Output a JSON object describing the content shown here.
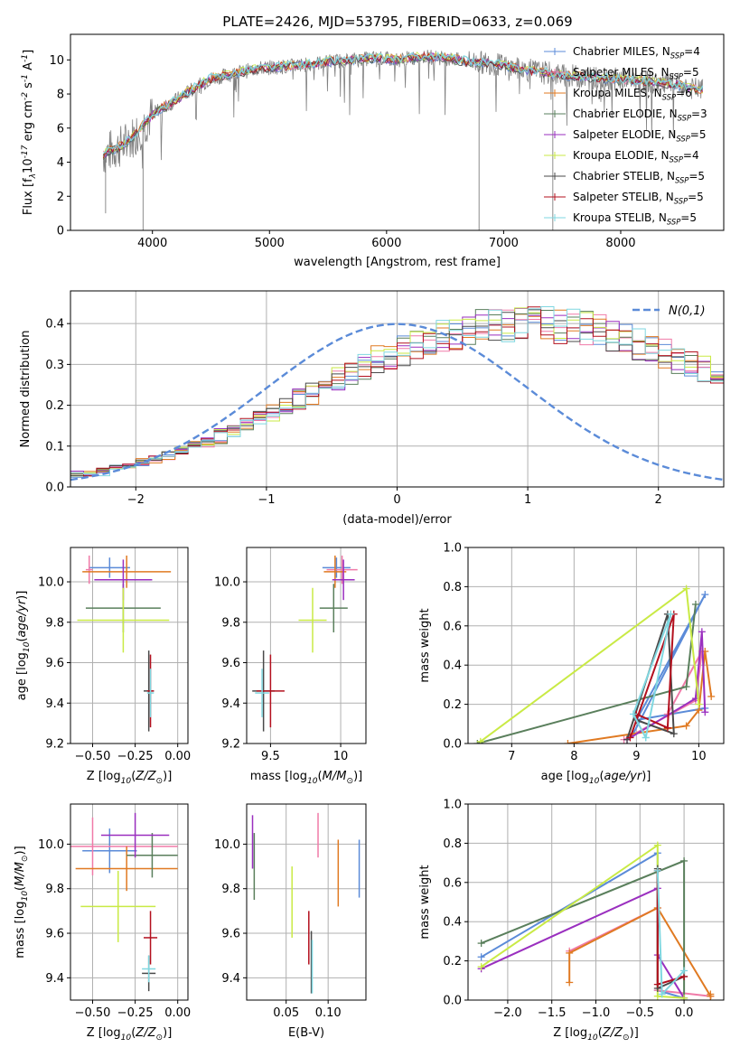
{
  "figure_title": "PLATE=2426, MJD=53795, FIBERID=0633, z=0.069",
  "colors": {
    "Chabrier MILES": "#5b8bd8",
    "Salpeter MILES": "#f07aa8",
    "Kroupa MILES": "#e07a22",
    "Chabrier ELODIE": "#5a7f5c",
    "Salpeter ELODIE": "#9a2fbf",
    "Kroupa ELODIE": "#c9ea45",
    "Chabrier STELIB": "#4a4a4a",
    "Salpeter STELIB": "#b3101e",
    "Kroupa STELIB": "#7fd7e0",
    "data": "#808080",
    "grid": "#b0b0b0",
    "normal_curve": "#5b8bd8"
  },
  "chart_data": [
    {
      "type": "line",
      "xlabel": "wavelength [Angstrom, rest frame]",
      "ylabel": "Flux [f$_\\lambda$10$^{-17}$ erg cm$^{-2}$ s$^{-1}$ A$^{-1}$]",
      "xlim": [
        3300,
        8880
      ],
      "ylim": [
        0,
        11.5
      ],
      "xticks": [
        4000,
        5000,
        6000,
        7000,
        8000
      ],
      "yticks": [
        0,
        2,
        4,
        6,
        8,
        10
      ],
      "grid": false,
      "legend_position": "right",
      "continuum": {
        "x": [
          3570,
          3650,
          3750,
          3850,
          3950,
          4050,
          4150,
          4300,
          4500,
          4700,
          4900,
          5100,
          5300,
          5500,
          5700,
          5900,
          6100,
          6300,
          6500,
          6700,
          6900,
          7100,
          7300,
          7500,
          7700,
          7900,
          8100,
          8300,
          8500,
          8700
        ],
        "y": [
          4.4,
          4.7,
          5.0,
          5.6,
          6.4,
          7.1,
          7.4,
          8.1,
          8.9,
          9.2,
          9.5,
          9.6,
          9.7,
          9.9,
          10.0,
          10.1,
          10.0,
          10.2,
          10.1,
          9.9,
          9.8,
          9.5,
          9.3,
          9.1,
          9.0,
          8.9,
          8.8,
          8.7,
          8.5,
          8.2
        ]
      },
      "series": [
        {
          "name": "Chabrier MILES",
          "label": "Chabrier MILES, N$_{SSP}$=4"
        },
        {
          "name": "Salpeter MILES",
          "label": "Salpeter MILES, N$_{SSP}$=5"
        },
        {
          "name": "Kroupa MILES",
          "label": "Kroupa MILES, N$_{SSP}$=6"
        },
        {
          "name": "Chabrier ELODIE",
          "label": "Chabrier ELODIE, N$_{SSP}$=3"
        },
        {
          "name": "Salpeter ELODIE",
          "label": "Salpeter ELODIE, N$_{SSP}$=5"
        },
        {
          "name": "Kroupa ELODIE",
          "label": "Kroupa ELODIE, N$_{SSP}$=4"
        },
        {
          "name": "Chabrier STELIB",
          "label": "Chabrier STELIB, N$_{SSP}$=5"
        },
        {
          "name": "Salpeter STELIB",
          "label": "Salpeter STELIB, N$_{SSP}$=5"
        },
        {
          "name": "Kroupa STELIB",
          "label": "Kroupa STELIB, N$_{SSP}$=5"
        }
      ]
    },
    {
      "type": "line",
      "xlabel": "(data-model)/error",
      "ylabel": "Normed distribution",
      "xlim": [
        -2.5,
        2.5
      ],
      "ylim": [
        0,
        0.48
      ],
      "xticks": [
        -2,
        -1,
        0,
        1,
        2
      ],
      "yticks": [
        0.0,
        0.1,
        0.2,
        0.3,
        0.4
      ],
      "grid": true,
      "legend_position": "top-right",
      "legend_label": "$\\mathcal{N}(0,1)$",
      "bin_width": 0.1,
      "x_start": -2.5,
      "histogram_template": [
        0.03,
        0.032,
        0.036,
        0.045,
        0.053,
        0.06,
        0.068,
        0.078,
        0.088,
        0.099,
        0.111,
        0.124,
        0.138,
        0.152,
        0.167,
        0.182,
        0.198,
        0.214,
        0.231,
        0.247,
        0.263,
        0.279,
        0.294,
        0.309,
        0.323,
        0.336,
        0.348,
        0.358,
        0.368,
        0.377,
        0.384,
        0.39,
        0.394,
        0.397,
        0.399,
        0.399,
        0.398,
        0.396,
        0.392,
        0.386,
        0.379,
        0.371,
        0.362,
        0.351,
        0.339,
        0.326,
        0.313,
        0.299,
        0.284,
        0.269,
        0.253,
        0.237,
        0.221,
        0.205,
        0.189,
        0.173,
        0.158,
        0.143,
        0.129,
        0.116,
        0.103,
        0.092,
        0.082,
        0.072,
        0.064,
        0.057,
        0.05,
        0.044,
        0.039,
        0.034,
        0.03,
        0.028,
        0.026,
        0.024,
        0.024,
        0.024,
        0.024,
        0.024,
        0.024,
        0.024
      ]
    },
    {
      "type": "scatter",
      "xlabel": "Z [log$_{10}$($Z/Z_\\odot$)]",
      "ylabel": "age  [log$_{10}$($age/yr$)]",
      "xlim": [
        -0.63,
        0.06
      ],
      "ylim": [
        9.2,
        10.17
      ],
      "xticks": [
        -0.5,
        -0.25,
        0.0
      ],
      "xticklabels": [
        "−0.50",
        "−0.25",
        "0.00"
      ],
      "xticks_minor": [
        -0.5,
        -0.45,
        -0.4,
        -0.35,
        -0.3,
        -0.25,
        -0.2,
        -0.15,
        -0.1,
        -0.05,
        0.0
      ],
      "xticks_minor_labels": [
        "−0.50",
        "−0.45",
        "−0.40",
        "−0.35",
        "−0.30",
        "−0.25",
        "−0.20",
        "−0.15",
        "−0.10",
        "−0.05",
        "0.00"
      ],
      "yticks": [
        9.2,
        9.4,
        9.6,
        9.8,
        10.0
      ],
      "grid": true,
      "points": [
        {
          "series": "Chabrier MILES",
          "x": -0.4,
          "y": 10.07,
          "xerr": 0.12,
          "yerr": 0.05
        },
        {
          "series": "Salpeter MILES",
          "x": -0.52,
          "y": 10.06,
          "xerr": 0.02,
          "yerr": 0.07
        },
        {
          "series": "Kroupa MILES",
          "x": -0.3,
          "y": 10.05,
          "xerr": 0.26,
          "yerr": 0.08
        },
        {
          "series": "Chabrier ELODIE",
          "x": -0.32,
          "y": 9.87,
          "xerr": 0.22,
          "yerr": 0.12
        },
        {
          "series": "Salpeter ELODIE",
          "x": -0.32,
          "y": 10.01,
          "xerr": 0.17,
          "yerr": 0.1
        },
        {
          "series": "Kroupa ELODIE",
          "x": -0.32,
          "y": 9.81,
          "xerr": 0.27,
          "yerr": 0.16
        },
        {
          "series": "Chabrier STELIB",
          "x": -0.17,
          "y": 9.46,
          "xerr": 0.03,
          "yerr": 0.2
        },
        {
          "series": "Salpeter STELIB",
          "x": -0.16,
          "y": 9.46,
          "xerr": 0.02,
          "yerr": 0.18
        },
        {
          "series": "Kroupa STELIB",
          "x": -0.16,
          "y": 9.45,
          "xerr": 0.02,
          "yerr": 0.12
        }
      ]
    },
    {
      "type": "scatter",
      "xlabel": "mass [log$_{10}$($M/M_\\odot$)]",
      "ylabel": "",
      "xlim": [
        9.33,
        10.18
      ],
      "ylim": [
        9.2,
        10.17
      ],
      "xticks": [
        9.5,
        10.0
      ],
      "yticks": [
        9.2,
        9.4,
        9.6,
        9.8,
        10.0
      ],
      "grid": true,
      "points": [
        {
          "series": "Chabrier MILES",
          "x": 9.97,
          "y": 10.07,
          "xerr": 0.1,
          "yerr": 0.05
        },
        {
          "series": "Salpeter MILES",
          "x": 10.01,
          "y": 10.06,
          "xerr": 0.11,
          "yerr": 0.07
        },
        {
          "series": "Kroupa MILES",
          "x": 9.96,
          "y": 10.05,
          "xerr": 0.08,
          "yerr": 0.08
        },
        {
          "series": "Chabrier ELODIE",
          "x": 9.95,
          "y": 9.87,
          "xerr": 0.1,
          "yerr": 0.12
        },
        {
          "series": "Salpeter ELODIE",
          "x": 10.02,
          "y": 10.01,
          "xerr": 0.08,
          "yerr": 0.1
        },
        {
          "series": "Kroupa ELODIE",
          "x": 9.8,
          "y": 9.81,
          "xerr": 0.1,
          "yerr": 0.16
        },
        {
          "series": "Chabrier STELIB",
          "x": 9.45,
          "y": 9.46,
          "xerr": 0.08,
          "yerr": 0.2
        },
        {
          "series": "Salpeter STELIB",
          "x": 9.5,
          "y": 9.46,
          "xerr": 0.1,
          "yerr": 0.18
        },
        {
          "series": "Kroupa STELIB",
          "x": 9.44,
          "y": 9.45,
          "xerr": 0.05,
          "yerr": 0.12
        }
      ]
    },
    {
      "type": "line",
      "xlabel": "age  [log$_{10}$($age/yr$)]",
      "ylabel": "mass weight",
      "xlim": [
        6.3,
        10.4
      ],
      "ylim": [
        0,
        1.0
      ],
      "xticks": [
        7,
        8,
        9,
        10
      ],
      "yticks": [
        0.0,
        0.2,
        0.4,
        0.6,
        0.8,
        1.0
      ],
      "grid": true,
      "series": [
        {
          "name": "Chabrier MILES",
          "x": [
            8.95,
            10.1,
            9.0,
            10.1
          ],
          "y": [
            0.05,
            0.76,
            0.12,
            0.18
          ]
        },
        {
          "name": "Salpeter MILES",
          "x": [
            8.8,
            9.95,
            10.05,
            9.5
          ],
          "y": [
            0.02,
            0.22,
            0.47,
            0.15
          ]
        },
        {
          "name": "Kroupa MILES",
          "x": [
            7.9,
            9.8,
            10.0,
            10.1,
            10.2
          ],
          "y": [
            0.0,
            0.09,
            0.17,
            0.47,
            0.24
          ]
        },
        {
          "name": "Chabrier ELODIE",
          "x": [
            6.45,
            9.8,
            9.95
          ],
          "y": [
            0.0,
            0.29,
            0.71
          ]
        },
        {
          "name": "Salpeter ELODIE",
          "x": [
            8.85,
            9.95,
            10.05,
            10.1
          ],
          "y": [
            0.02,
            0.23,
            0.57,
            0.16
          ]
        },
        {
          "name": "Kroupa ELODIE",
          "x": [
            6.5,
            9.8,
            10.0
          ],
          "y": [
            0.01,
            0.79,
            0.2
          ]
        },
        {
          "name": "Chabrier STELIB",
          "x": [
            8.85,
            9.5,
            9.6,
            9.0
          ],
          "y": [
            0.02,
            0.66,
            0.05,
            0.12
          ]
        },
        {
          "name": "Salpeter STELIB",
          "x": [
            8.9,
            9.6,
            9.5,
            9.0
          ],
          "y": [
            0.03,
            0.66,
            0.08,
            0.15
          ]
        },
        {
          "name": "Kroupa STELIB",
          "x": [
            9.15,
            9.55,
            8.95,
            9.15
          ],
          "y": [
            0.03,
            0.66,
            0.15,
            0.03
          ]
        }
      ]
    },
    {
      "type": "scatter",
      "xlabel": "Z [log$_{10}$($Z/Z_\\odot$)]",
      "ylabel": "mass [log$_{10}$($M/M_\\odot$)]",
      "xlim": [
        -0.63,
        0.06
      ],
      "ylim": [
        9.3,
        10.18
      ],
      "xticks": [
        -0.5,
        -0.25,
        0.0
      ],
      "xticklabels": [
        "−0.50",
        "−0.25",
        "0.00"
      ],
      "yticks": [
        9.4,
        9.6,
        9.8,
        10.0
      ],
      "grid": true,
      "points": [
        {
          "series": "Chabrier MILES",
          "x": -0.4,
          "y": 9.97,
          "xerr": 0.16,
          "yerr": 0.1
        },
        {
          "series": "Salpeter MILES",
          "x": -0.5,
          "y": 9.99,
          "xerr": 0.5,
          "yerr": 0.13
        },
        {
          "series": "Kroupa MILES",
          "x": -0.3,
          "y": 9.89,
          "xerr": 0.3,
          "yerr": 0.1
        },
        {
          "series": "Chabrier ELODIE",
          "x": -0.15,
          "y": 9.95,
          "xerr": 0.15,
          "yerr": 0.1
        },
        {
          "series": "Salpeter ELODIE",
          "x": -0.25,
          "y": 10.04,
          "xerr": 0.2,
          "yerr": 0.1
        },
        {
          "series": "Kroupa ELODIE",
          "x": -0.35,
          "y": 9.72,
          "xerr": 0.22,
          "yerr": 0.16
        },
        {
          "series": "Chabrier STELIB",
          "x": -0.17,
          "y": 9.42,
          "xerr": 0.04,
          "yerr": 0.08
        },
        {
          "series": "Salpeter STELIB",
          "x": -0.16,
          "y": 9.58,
          "xerr": 0.04,
          "yerr": 0.12
        },
        {
          "series": "Kroupa STELIB",
          "x": -0.17,
          "y": 9.44,
          "xerr": 0.04,
          "yerr": 0.06
        }
      ]
    },
    {
      "type": "scatter",
      "xlabel": "E(B-V)",
      "ylabel": "",
      "xlim": [
        0.003,
        0.145
      ],
      "ylim": [
        9.3,
        10.18
      ],
      "xticks": [
        0.05,
        0.1
      ],
      "xticklabels": [
        "0.05",
        "0.10"
      ],
      "yticks": [
        9.4,
        9.6,
        9.8,
        10.0
      ],
      "grid": true,
      "points": [
        {
          "series": "Chabrier MILES",
          "x": 0.137,
          "y": 9.89,
          "yerr": 0.13
        },
        {
          "series": "Salpeter MILES",
          "x": 0.088,
          "y": 10.04,
          "yerr": 0.1
        },
        {
          "series": "Kroupa MILES",
          "x": 0.112,
          "y": 9.87,
          "yerr": 0.15
        },
        {
          "series": "Chabrier ELODIE",
          "x": 0.012,
          "y": 9.9,
          "yerr": 0.15
        },
        {
          "series": "Salpeter ELODIE",
          "x": 0.01,
          "y": 10.01,
          "yerr": 0.12
        },
        {
          "series": "Kroupa ELODIE",
          "x": 0.057,
          "y": 9.74,
          "yerr": 0.16
        },
        {
          "series": "Chabrier STELIB",
          "x": 0.08,
          "y": 9.47,
          "yerr": 0.14
        },
        {
          "series": "Salpeter STELIB",
          "x": 0.077,
          "y": 9.58,
          "yerr": 0.12
        },
        {
          "series": "Kroupa STELIB",
          "x": 0.081,
          "y": 9.45,
          "yerr": 0.12
        }
      ]
    },
    {
      "type": "line",
      "xlabel": "Z [log$_{10}$($Z/Z_\\odot$)]",
      "ylabel": "mass weight",
      "xlim": [
        -2.45,
        0.45
      ],
      "ylim": [
        0,
        1.0
      ],
      "xticks": [
        -2.0,
        -1.5,
        -1.0,
        -0.5,
        0.0
      ],
      "xticklabels": [
        "−2.0",
        "−1.5",
        "−1.0",
        "−0.5",
        "0.0"
      ],
      "yticks": [
        0.0,
        0.2,
        0.4,
        0.6,
        0.8,
        1.0
      ],
      "grid": true,
      "series": [
        {
          "name": "Chabrier MILES",
          "x": [
            -2.3,
            -0.3,
            -0.3,
            0.0
          ],
          "y": [
            0.22,
            0.75,
            0.05,
            0.01
          ]
        },
        {
          "name": "Salpeter MILES",
          "x": [
            -1.3,
            -0.3,
            -0.3,
            0.3
          ],
          "y": [
            0.25,
            0.47,
            0.05,
            0.02
          ]
        },
        {
          "name": "Kroupa MILES",
          "x": [
            -1.3,
            -1.3,
            -0.3,
            0.3,
            0.3
          ],
          "y": [
            0.09,
            0.24,
            0.47,
            0.02,
            0.03
          ]
        },
        {
          "name": "Chabrier ELODIE",
          "x": [
            -2.3,
            0.0,
            0.0
          ],
          "y": [
            0.29,
            0.71,
            0.0
          ]
        },
        {
          "name": "Salpeter ELODIE",
          "x": [
            -2.3,
            -0.3,
            -0.3,
            0.0
          ],
          "y": [
            0.16,
            0.57,
            0.23,
            0.01
          ]
        },
        {
          "name": "Kroupa ELODIE",
          "x": [
            -2.3,
            -0.3,
            -0.3,
            0.0
          ],
          "y": [
            0.17,
            0.79,
            0.02,
            0.01
          ]
        },
        {
          "name": "Chabrier STELIB",
          "x": [
            -0.3,
            -0.3,
            0.0
          ],
          "y": [
            0.67,
            0.06,
            0.12
          ]
        },
        {
          "name": "Salpeter STELIB",
          "x": [
            -0.3,
            -0.3,
            0.0
          ],
          "y": [
            0.66,
            0.08,
            0.12
          ]
        },
        {
          "name": "Kroupa STELIB",
          "x": [
            -0.3,
            -0.25,
            0.0
          ],
          "y": [
            0.66,
            0.03,
            0.15
          ]
        }
      ]
    }
  ]
}
